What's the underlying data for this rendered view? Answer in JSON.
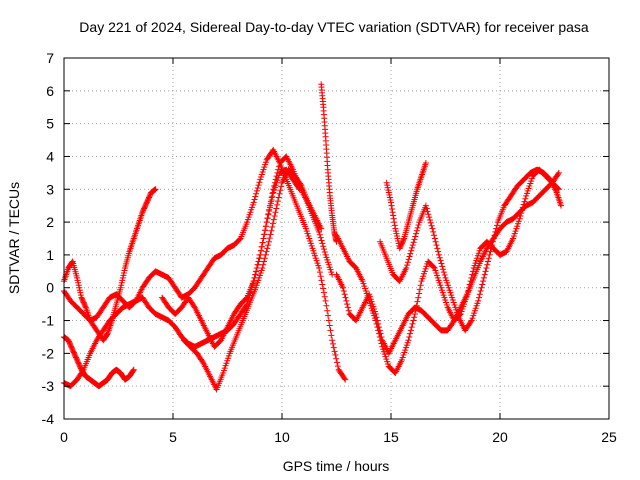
{
  "chart_data": {
    "type": "scatter",
    "title": "Day 221 of 2024, Sidereal Day-to-day VTEC variation (SDTVAR) for receiver pasa",
    "xlabel": "GPS time / hours",
    "ylabel": "SDTVAR / TECUs",
    "xlim": [
      0,
      25
    ],
    "ylim": [
      -4,
      7
    ],
    "xticks": [
      "0",
      "5",
      "10",
      "15",
      "20",
      "25"
    ],
    "yticks": [
      "-4",
      "-3",
      "-2",
      "-1",
      "0",
      "1",
      "2",
      "3",
      "4",
      "5",
      "6",
      "7"
    ],
    "grid": true,
    "marker": "plus",
    "color": "#ff0000",
    "series": [
      {
        "x": [
          0,
          0.2,
          0.4,
          0.6,
          0.8,
          1.0,
          1.2,
          1.5,
          1.8,
          2.0,
          2.2,
          2.4,
          2.6,
          2.8,
          3.0,
          3.2,
          3.4,
          3.6,
          3.8,
          4.0,
          4.2
        ],
        "y": [
          0.2,
          0.6,
          0.8,
          0.3,
          -0.3,
          -0.6,
          -1.0,
          -1.3,
          -1.6,
          -1.4,
          -1.0,
          -0.5,
          0.0,
          0.6,
          1.1,
          1.5,
          1.9,
          2.3,
          2.6,
          2.9,
          3.0
        ]
      },
      {
        "x": [
          0,
          0.2,
          0.4,
          0.6,
          0.8,
          1.0,
          1.2,
          1.4,
          1.6,
          1.8,
          2.0,
          2.2,
          2.4,
          2.6,
          2.8,
          3.0,
          3.2
        ],
        "y": [
          -1.5,
          -1.6,
          -1.9,
          -2.2,
          -2.5,
          -2.7,
          -2.8,
          -2.9,
          -3.0,
          -2.9,
          -2.8,
          -2.6,
          -2.5,
          -2.6,
          -2.8,
          -2.7,
          -2.5
        ]
      },
      {
        "x": [
          0,
          0.3,
          0.6,
          0.9,
          1.2,
          1.5,
          1.8,
          2.1,
          2.4,
          2.7,
          3.0,
          3.3,
          3.6,
          3.9,
          4.2,
          4.5,
          4.8,
          5.1,
          5.4,
          5.7,
          6.0,
          6.3,
          6.6,
          6.9,
          7.2,
          7.5,
          7.8,
          8.1,
          8.4,
          8.7,
          9.0,
          9.3,
          9.6,
          9.9,
          10.2,
          10.5,
          10.8,
          11.1,
          11.4,
          11.7,
          12.0,
          12.3,
          12.6,
          12.9
        ],
        "y": [
          -0.1,
          -0.4,
          -0.6,
          -0.8,
          -1.0,
          -0.9,
          -0.6,
          -0.3,
          -0.2,
          -0.4,
          -0.6,
          -0.4,
          0.0,
          0.3,
          0.5,
          0.4,
          0.3,
          0.0,
          -0.3,
          -0.2,
          0.0,
          0.3,
          0.6,
          0.9,
          1.0,
          1.2,
          1.3,
          1.5,
          2.0,
          2.6,
          3.3,
          3.9,
          4.2,
          3.8,
          3.3,
          2.8,
          2.3,
          1.8,
          1.2,
          0.6,
          -0.4,
          -1.6,
          -2.5,
          -2.8
        ]
      },
      {
        "x": [
          0,
          0.3,
          0.6,
          0.9,
          1.2,
          1.5,
          1.8,
          2.1,
          2.4,
          2.7,
          3.0,
          3.3,
          3.6,
          3.9,
          4.2,
          4.5,
          4.8,
          5.1,
          5.4,
          5.7,
          6.0,
          6.3,
          6.6,
          6.9,
          7.2,
          7.5,
          7.8,
          8.1,
          8.4,
          8.7,
          9.0,
          9.3,
          9.6,
          9.9,
          10.2,
          10.5,
          10.8
        ],
        "y": [
          -2.9,
          -3.0,
          -2.8,
          -2.5,
          -2.0,
          -1.6,
          -1.3,
          -1.0,
          -0.8,
          -0.6,
          -0.5,
          -0.4,
          -0.3,
          -0.6,
          -0.8,
          -0.9,
          -1.0,
          -1.2,
          -1.5,
          -1.7,
          -1.8,
          -1.7,
          -1.6,
          -1.5,
          -1.4,
          -1.3,
          -1.1,
          -0.8,
          -0.5,
          0.2,
          1.0,
          2.0,
          2.9,
          3.5,
          3.6,
          3.3,
          3.0
        ]
      },
      {
        "x": [
          4.5,
          4.8,
          5.1,
          5.4,
          5.7,
          6.0,
          6.3,
          6.6,
          6.9,
          7.2,
          7.5,
          7.8,
          8.1,
          8.4,
          8.7,
          9.0,
          9.3,
          9.6,
          9.9,
          10.2,
          10.5,
          10.8,
          11.1,
          11.4,
          11.7,
          12.0,
          12.3
        ],
        "y": [
          -0.3,
          -0.6,
          -0.8,
          -0.6,
          -0.3,
          -0.6,
          -1.0,
          -1.4,
          -1.8,
          -1.6,
          -1.2,
          -0.8,
          -0.5,
          -0.3,
          0.2,
          1.0,
          2.0,
          3.0,
          3.8,
          4.0,
          3.6,
          3.1,
          2.7,
          2.2,
          1.7,
          1.0,
          0.4
        ]
      },
      {
        "x": [
          5.5,
          5.8,
          6.1,
          6.4,
          6.7,
          7.0,
          7.3,
          7.6,
          7.9,
          8.2,
          8.5,
          8.8,
          9.1,
          9.4,
          9.7,
          10.0,
          10.3,
          10.6,
          10.9,
          11.2,
          11.5,
          11.8
        ],
        "y": [
          -1.6,
          -1.8,
          -2.0,
          -2.3,
          -2.7,
          -3.1,
          -2.6,
          -2.0,
          -1.5,
          -1.0,
          -0.5,
          0.0,
          0.6,
          1.4,
          2.3,
          3.2,
          3.6,
          3.4,
          3.1,
          2.6,
          2.2,
          1.8
        ]
      },
      {
        "x": [
          11.8,
          11.9,
          12.0,
          12.1,
          12.2,
          12.3,
          12.4,
          12.5
        ],
        "y": [
          6.2,
          5.5,
          4.6,
          3.6,
          2.8,
          2.2,
          1.7,
          1.4
        ]
      },
      {
        "x": [
          12.5,
          12.8,
          13.1,
          13.4,
          13.7,
          14.0,
          14.3,
          14.6,
          14.9,
          15.2,
          15.5,
          15.8,
          16.1,
          16.4,
          16.7,
          17.0,
          17.3,
          17.6,
          17.9,
          18.2,
          18.5,
          18.8,
          19.1,
          19.4,
          19.7,
          20.0,
          20.3,
          20.6,
          20.9,
          21.2,
          21.5,
          21.8,
          22.1,
          22.4,
          22.7
        ],
        "y": [
          0.4,
          0.0,
          -0.8,
          -1.0,
          -0.6,
          -0.2,
          -0.8,
          -1.6,
          -2.0,
          -1.6,
          -1.2,
          -0.8,
          -0.6,
          -0.7,
          -0.9,
          -1.1,
          -1.3,
          -1.3,
          -1.0,
          -0.6,
          -0.2,
          0.3,
          0.8,
          1.2,
          1.5,
          1.8,
          2.0,
          2.1,
          2.3,
          2.5,
          2.6,
          2.8,
          3.0,
          3.2,
          3.5
        ]
      },
      {
        "x": [
          12.5,
          12.8,
          13.1,
          13.4,
          13.7,
          14.0,
          14.3,
          14.6,
          14.9,
          15.2,
          15.5,
          15.8,
          16.1,
          16.4,
          16.7,
          17.0,
          17.3,
          17.6,
          17.9,
          18.2,
          18.5,
          18.8,
          19.1,
          19.4,
          19.7,
          20.0,
          20.3,
          20.6,
          20.9,
          21.2,
          21.5,
          21.8,
          22.1,
          22.4,
          22.7
        ],
        "y": [
          1.6,
          1.2,
          0.8,
          0.6,
          0.2,
          -0.4,
          -1.0,
          -1.8,
          -2.4,
          -2.6,
          -2.2,
          -1.6,
          -0.8,
          0.2,
          0.8,
          0.6,
          0.0,
          -0.6,
          -1.0,
          -0.8,
          -0.2,
          0.6,
          1.2,
          1.4,
          1.2,
          1.0,
          1.1,
          1.5,
          2.1,
          2.8,
          3.4,
          3.6,
          3.4,
          3.2,
          3.0
        ]
      },
      {
        "x": [
          14.5,
          14.8,
          15.1,
          15.4,
          15.7,
          16.0,
          16.3,
          16.6,
          16.9,
          17.2,
          17.5,
          17.8,
          18.1,
          18.4,
          18.7,
          19.0,
          19.3,
          19.6,
          19.9,
          20.2,
          20.5,
          20.8,
          21.1,
          21.4,
          21.7,
          22.0,
          22.3,
          22.6,
          22.8
        ],
        "y": [
          1.4,
          0.9,
          0.4,
          0.2,
          0.6,
          1.3,
          2.0,
          2.5,
          1.8,
          1.0,
          0.3,
          -0.3,
          -0.9,
          -1.3,
          -1.0,
          -0.4,
          0.4,
          1.2,
          2.0,
          2.5,
          2.8,
          3.1,
          3.3,
          3.5,
          3.6,
          3.5,
          3.3,
          2.9,
          2.5
        ]
      },
      {
        "x": [
          14.8,
          15.0,
          15.2,
          15.4,
          15.6,
          15.8,
          16.0,
          16.2,
          16.4,
          16.6
        ],
        "y": [
          3.2,
          2.6,
          1.8,
          1.2,
          1.5,
          2.0,
          2.5,
          3.0,
          3.4,
          3.8
        ]
      }
    ]
  }
}
